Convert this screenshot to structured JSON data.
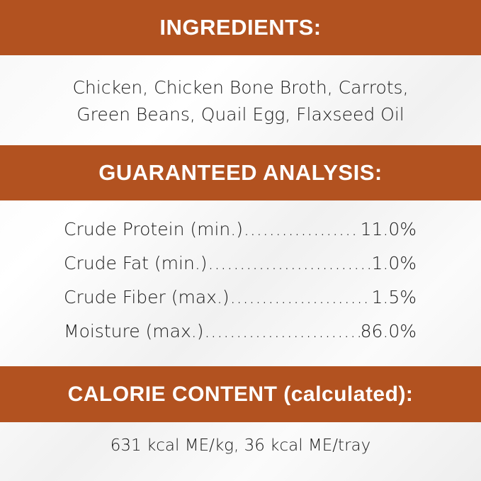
{
  "colors": {
    "band": "#b25220",
    "band_text": "#ffffff",
    "body_text": "#1a1a1a"
  },
  "ingredients": {
    "heading": "INGREDIENTS:",
    "lines": [
      "Chicken, Chicken Bone Broth, Carrots,",
      "Green Beans, Quail Egg, Flaxseed Oil"
    ]
  },
  "analysis": {
    "heading": "GUARANTEED ANALYSIS:",
    "rows": [
      {
        "label": "Crude Protein (min.)",
        "value": "11.0%"
      },
      {
        "label": "Crude Fat (min.)",
        "value": "1.0%"
      },
      {
        "label": "Crude Fiber (max.)",
        "value": "1.5%"
      },
      {
        "label": "Moisture (max.)",
        "value": "86.0%"
      }
    ]
  },
  "calorie": {
    "heading": "CALORIE CONTENT (calculated):",
    "text": "631 kcal ME/kg, 36 kcal ME/tray"
  }
}
